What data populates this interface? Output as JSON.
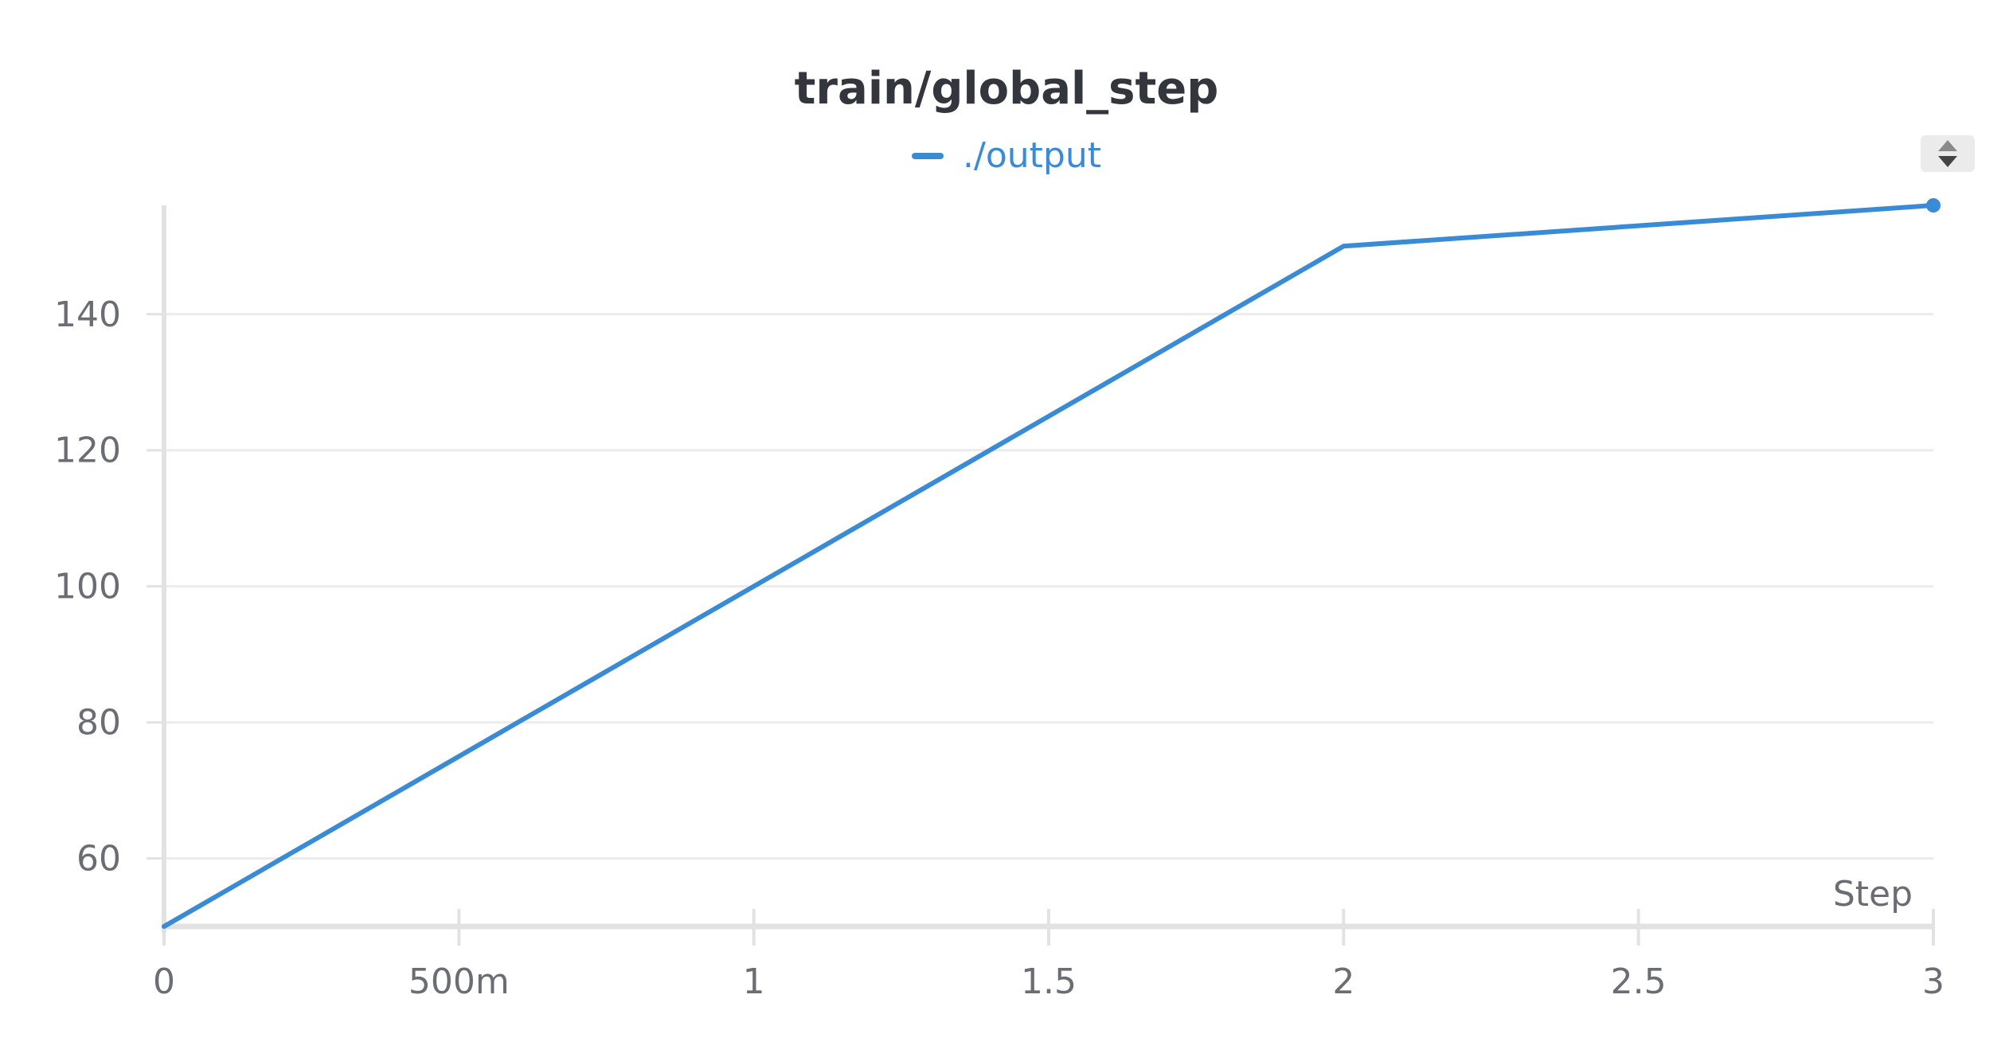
{
  "chart_data": {
    "type": "line",
    "title": "train/global_step",
    "xlabel": "Step",
    "ylabel": "",
    "x_ticks": [
      {
        "value": 0,
        "label": "0"
      },
      {
        "value": 0.5,
        "label": "500m"
      },
      {
        "value": 1,
        "label": "1"
      },
      {
        "value": 1.5,
        "label": "1.5"
      },
      {
        "value": 2,
        "label": "2"
      },
      {
        "value": 2.5,
        "label": "2.5"
      },
      {
        "value": 3,
        "label": "3"
      }
    ],
    "y_ticks": [
      {
        "value": 60,
        "label": "60"
      },
      {
        "value": 80,
        "label": "80"
      },
      {
        "value": 100,
        "label": "100"
      },
      {
        "value": 120,
        "label": "120"
      },
      {
        "value": 140,
        "label": "140"
      }
    ],
    "xlim": [
      0,
      3
    ],
    "ylim": [
      50,
      156
    ],
    "grid": true,
    "legend_position": "top-center",
    "series": [
      {
        "name": "./output",
        "color": "#3a8bd6",
        "x": [
          0,
          2,
          3
        ],
        "y": [
          50,
          150,
          156
        ]
      }
    ]
  },
  "controls": {
    "sort_icon": "sort-up-down-icon"
  }
}
